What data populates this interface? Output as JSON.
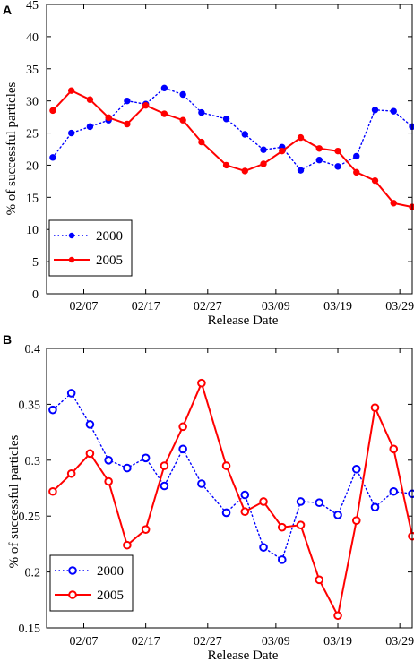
{
  "chart_data": [
    {
      "panel": "A",
      "type": "line",
      "xlabel": "Release Date",
      "ylabel": "% of successful particles",
      "ylim": [
        0,
        45
      ],
      "yticks": [
        "0",
        "5",
        "10",
        "15",
        "20",
        "25",
        "30",
        "35",
        "40",
        "45"
      ],
      "xticks": [
        "02/07",
        "02/17",
        "02/27",
        "03/09",
        "03/19",
        "03/29"
      ],
      "x": [
        "02/02",
        "02/05",
        "02/08",
        "02/11",
        "02/14",
        "02/17",
        "02/20",
        "02/23",
        "02/26",
        "03/01",
        "03/04",
        "03/07",
        "03/10",
        "03/13",
        "03/16",
        "03/19",
        "03/22",
        "03/25",
        "03/28",
        "03/31"
      ],
      "series": [
        {
          "name": "2000",
          "style": "dotted",
          "marker": "dot",
          "color": "#0000ff",
          "values": [
            21.2,
            25.0,
            26.0,
            27.0,
            30.0,
            29.5,
            32.0,
            31.0,
            28.2,
            27.2,
            24.8,
            22.4,
            22.8,
            19.2,
            20.8,
            19.8,
            21.4,
            28.6,
            28.4,
            26.0
          ]
        },
        {
          "name": "2005",
          "style": "solid",
          "marker": "dot",
          "color": "#ff0000",
          "values": [
            28.5,
            31.6,
            30.2,
            27.4,
            26.4,
            29.3,
            28.0,
            27.0,
            23.6,
            20.0,
            19.1,
            20.2,
            22.2,
            24.3,
            22.6,
            22.2,
            18.9,
            17.6,
            14.1,
            13.5
          ]
        }
      ],
      "legend": "bottom-left"
    },
    {
      "panel": "B",
      "type": "line",
      "xlabel": "Release Date",
      "ylabel": "% of successful particles",
      "ylim": [
        0.15,
        0.4
      ],
      "yticks": [
        "0.15",
        "0.2",
        "0.25",
        "0.3",
        "0.35",
        "0.4"
      ],
      "xticks": [
        "02/07",
        "02/17",
        "02/27",
        "03/09",
        "03/19",
        "03/29"
      ],
      "x": [
        "02/02",
        "02/05",
        "02/08",
        "02/11",
        "02/14",
        "02/17",
        "02/20",
        "02/23",
        "02/26",
        "03/01",
        "03/04",
        "03/07",
        "03/10",
        "03/13",
        "03/16",
        "03/19",
        "03/22",
        "03/25",
        "03/28",
        "03/31"
      ],
      "series": [
        {
          "name": "2000",
          "style": "dotted",
          "marker": "circle",
          "color": "#0000ff",
          "values": [
            0.345,
            0.36,
            0.332,
            0.3,
            0.293,
            0.302,
            0.277,
            0.31,
            0.279,
            0.253,
            0.269,
            0.222,
            0.211,
            0.263,
            0.262,
            0.251,
            0.292,
            0.258,
            0.272,
            0.27
          ]
        },
        {
          "name": "2005",
          "style": "solid",
          "marker": "circle",
          "color": "#ff0000",
          "values": [
            0.272,
            0.288,
            0.306,
            0.281,
            0.224,
            0.238,
            0.295,
            0.33,
            0.369,
            0.295,
            0.254,
            0.263,
            0.24,
            0.242,
            0.193,
            0.161,
            0.246,
            0.347,
            0.31,
            0.232
          ]
        }
      ],
      "legend": "bottom-left"
    }
  ]
}
